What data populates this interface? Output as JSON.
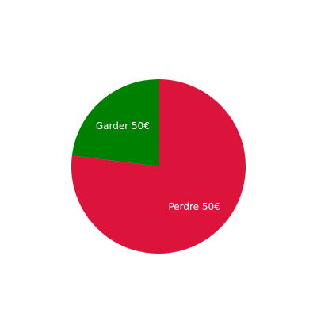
{
  "chart_data": {
    "type": "pie",
    "title": "",
    "slices": [
      {
        "label": "Perdre 50€",
        "value": 77,
        "color": "#dc143c"
      },
      {
        "label": "Garder 50€",
        "value": 23,
        "color": "#008000"
      }
    ],
    "start_angle_deg": 0,
    "direction": "clockwise",
    "legend": "none"
  }
}
